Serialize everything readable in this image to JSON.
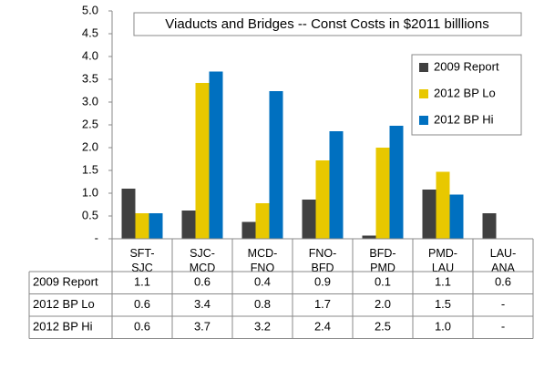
{
  "chart_data": {
    "type": "bar",
    "title": "Viaducts and Bridges -- Const Costs in $2011 billlions",
    "categories": [
      "SFT-SJC",
      "SJC-MCD",
      "MCD-FNO",
      "FNO-BFD",
      "BFD-PMD",
      "PMD-LAU",
      "LAU-ANA"
    ],
    "series": [
      {
        "name": "2009 Report",
        "color": "#404040",
        "values": [
          1.1,
          0.62,
          0.37,
          0.86,
          0.07,
          1.08,
          0.56
        ],
        "value_labels": [
          "1.1",
          "0.6",
          "0.4",
          "0.9",
          "0.1",
          "1.1",
          "0.6"
        ]
      },
      {
        "name": "2012 BP Lo",
        "color": "#e8c800",
        "values": [
          0.56,
          3.42,
          0.78,
          1.72,
          2.0,
          1.47,
          null
        ],
        "value_labels": [
          "0.6",
          "3.4",
          "0.8",
          "1.7",
          "2.0",
          "1.5",
          "-"
        ]
      },
      {
        "name": "2012 BP Hi",
        "color": "#0070c0",
        "values": [
          0.56,
          3.67,
          3.24,
          2.36,
          2.48,
          0.97,
          null
        ],
        "value_labels": [
          "0.6",
          "3.7",
          "3.2",
          "2.4",
          "2.5",
          "1.0",
          "-"
        ]
      }
    ],
    "ylim": [
      0,
      5
    ],
    "yticks": [
      {
        "value": 0,
        "label": "-"
      },
      0.5,
      {
        "value": 1,
        "label": "1.0"
      },
      1.5,
      {
        "value": 2,
        "label": "2.0"
      },
      2.5,
      {
        "value": 3,
        "label": "3.0"
      },
      3.5,
      {
        "value": 4,
        "label": "4.0"
      },
      4.5,
      {
        "value": 5,
        "label": "5.0"
      }
    ],
    "legend": "upper right",
    "grid": false
  }
}
